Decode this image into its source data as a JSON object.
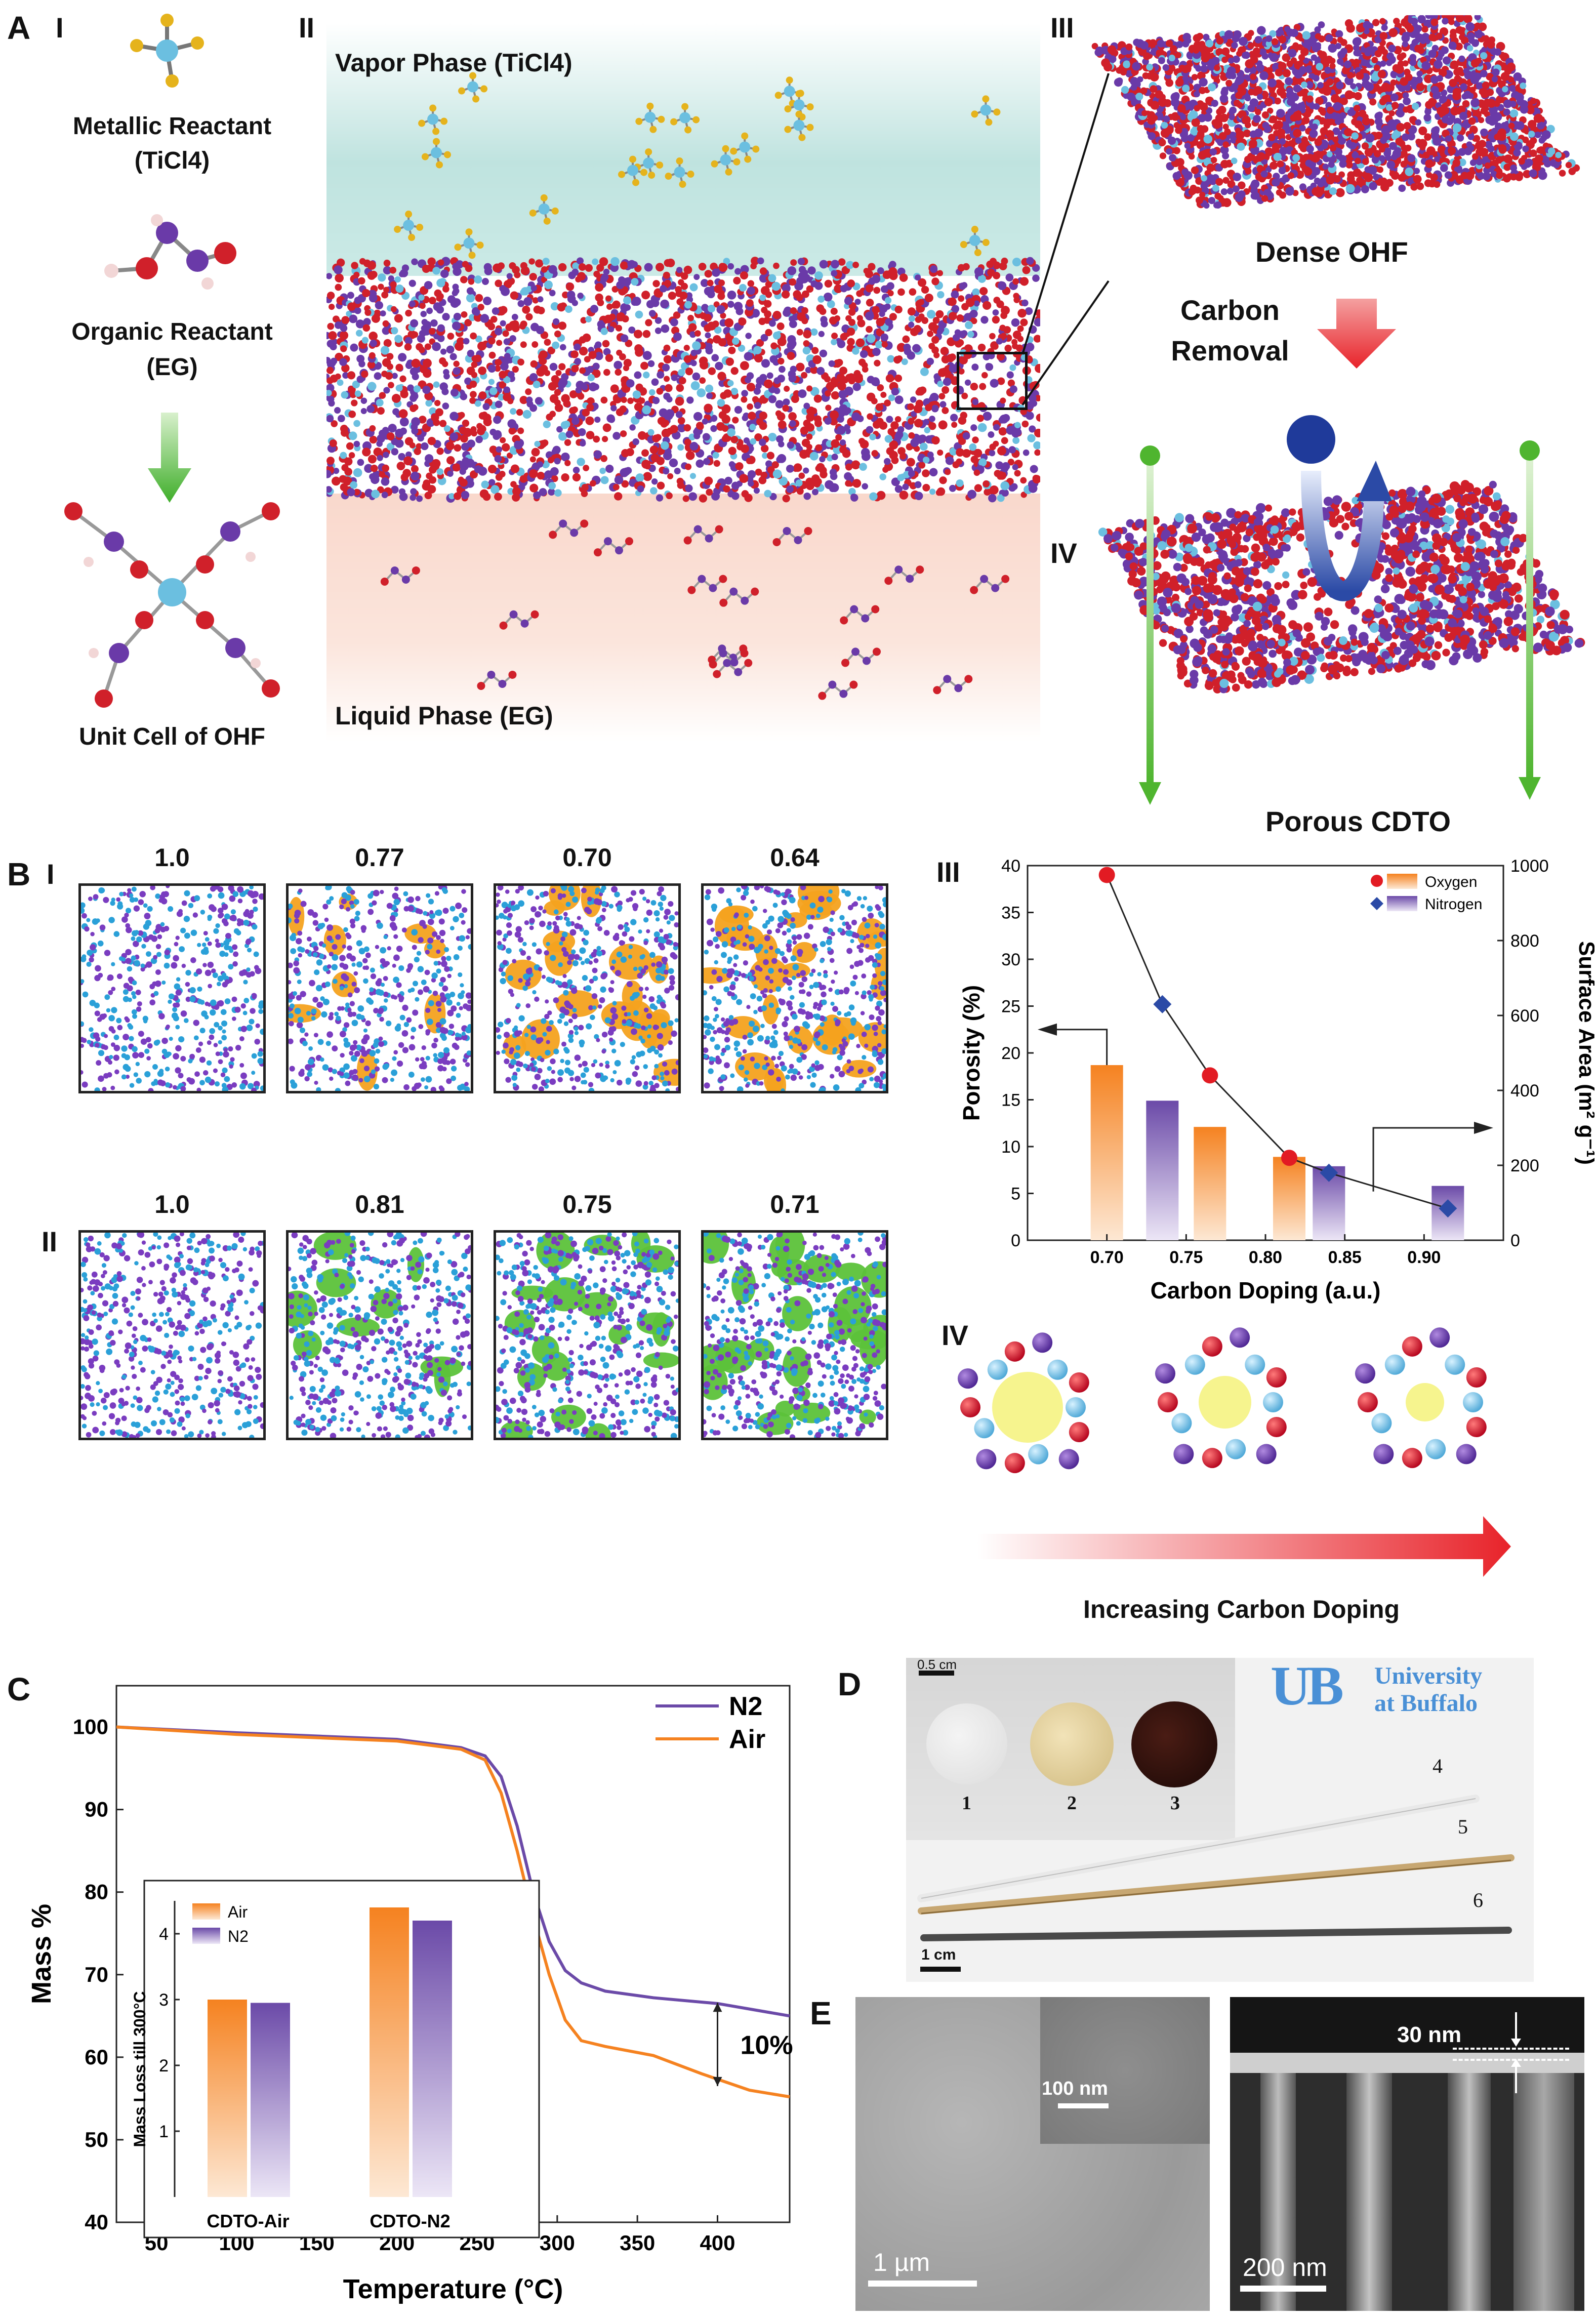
{
  "panel_A": {
    "letter": "A",
    "I": {
      "roman": "I",
      "metallic_label_1": "Metallic Reactant",
      "metallic_label_2": "(TiCl4)",
      "organic_label_1": "Organic Reactant",
      "organic_label_2": "(EG)",
      "unit_cell_label": "Unit Cell of OHF"
    },
    "II": {
      "roman": "II",
      "vapor_label": "Vapor Phase (TiCl4)",
      "liquid_label": "Liquid Phase (EG)"
    },
    "III": {
      "roman": "III",
      "dense_label": "Dense OHF",
      "removal_label_1": "Carbon",
      "removal_label_2": "Removal"
    },
    "IV": {
      "roman": "IV",
      "porous_label": "Porous CDTO"
    },
    "colors": {
      "vapor": "#bfe3df",
      "liquid": "#f9d8cc",
      "oxygen": "#d0202a",
      "carbon": "#6a3aa8",
      "titanium": "#6bbfe0",
      "arrow_red": "#e8232a",
      "arrow_green": "#5cbf3a"
    }
  },
  "panel_B": {
    "letter": "B",
    "I": {
      "roman": "I",
      "values": [
        "1.0",
        "0.77",
        "0.70",
        "0.64"
      ],
      "pore_color": "#f4a21f"
    },
    "II": {
      "roman": "II",
      "values": [
        "1.0",
        "0.81",
        "0.75",
        "0.71"
      ],
      "pore_color": "#5cc23a"
    },
    "III": {
      "roman": "III"
    },
    "IV": {
      "roman": "IV",
      "arrow_label": "Increasing Carbon Doping"
    }
  },
  "panel_C": {
    "letter": "C"
  },
  "panel_D": {
    "letter": "D",
    "scale_top": "0.5 cm",
    "scale_bottom": "1 cm",
    "disc_labels": [
      "1",
      "2",
      "3"
    ],
    "rod_labels": [
      "4",
      "5",
      "6"
    ],
    "logo_line1": "University",
    "logo_line2": "at Buffalo",
    "logo_mark": "UB"
  },
  "panel_E": {
    "letter": "E",
    "left_scale": "1 µm",
    "inset_scale": "100 nm",
    "right_scale": "200 nm",
    "thickness_label": "30 nm"
  },
  "chart_data": [
    {
      "type": "bar",
      "id": "B-III",
      "xlabel": "Carbon Doping (a.u.)",
      "ylabel": "Porosity (%)",
      "y2label": "Surface Area (m² g⁻¹)",
      "xlim": [
        0.65,
        0.95
      ],
      "ylim": [
        0,
        40
      ],
      "y2lim": [
        0,
        1000
      ],
      "xticks": [
        "0.70",
        "0.75",
        "0.80",
        "0.85",
        "0.90"
      ],
      "yticks": [
        "0",
        "5",
        "10",
        "15",
        "20",
        "25",
        "30",
        "35",
        "40"
      ],
      "y2ticks": [
        "0",
        "200",
        "400",
        "600",
        "800",
        "1000"
      ],
      "legend": [
        "Oxygen",
        "Nitrogen"
      ],
      "legend_position": "top-right",
      "bars": [
        {
          "series": "Oxygen",
          "x": 0.7,
          "porosity": 18.7
        },
        {
          "series": "Nitrogen",
          "x": 0.735,
          "porosity": 14.9
        },
        {
          "series": "Oxygen",
          "x": 0.765,
          "porosity": 12.1
        },
        {
          "series": "Oxygen",
          "x": 0.815,
          "porosity": 8.9
        },
        {
          "series": "Nitrogen",
          "x": 0.84,
          "porosity": 7.9
        },
        {
          "series": "Nitrogen",
          "x": 0.915,
          "porosity": 5.8
        }
      ],
      "surface_area_points": [
        {
          "series": "Oxygen",
          "x": 0.7,
          "y": 975
        },
        {
          "series": "Nitrogen",
          "x": 0.735,
          "y": 630
        },
        {
          "series": "Oxygen",
          "x": 0.765,
          "y": 440
        },
        {
          "series": "Oxygen",
          "x": 0.815,
          "y": 220
        },
        {
          "series": "Nitrogen",
          "x": 0.84,
          "y": 180
        },
        {
          "series": "Nitrogen",
          "x": 0.915,
          "y": 85
        }
      ],
      "colors": {
        "Oxygen": "#f58220",
        "Nitrogen": "#6b4aa8",
        "oxygen_marker": "#e21b23",
        "nitrogen_marker": "#2b4aa6"
      }
    },
    {
      "type": "line",
      "id": "C",
      "xlabel": "Temperature (°C)",
      "ylabel": "Mass %",
      "xlim": [
        25,
        445
      ],
      "ylim": [
        40,
        105
      ],
      "xticks": [
        "50",
        "100",
        "150",
        "200",
        "250",
        "300",
        "350",
        "400"
      ],
      "yticks": [
        "40",
        "50",
        "60",
        "70",
        "80",
        "90",
        "100"
      ],
      "legend_position": "top-right",
      "annotation": "10%",
      "series": [
        {
          "name": "N2",
          "color": "#6b4aa8",
          "x": [
            25,
            100,
            200,
            240,
            255,
            265,
            275,
            285,
            295,
            305,
            315,
            330,
            360,
            400,
            445
          ],
          "y": [
            100,
            99.3,
            98.5,
            97.5,
            96.5,
            94,
            88,
            80,
            74,
            70.5,
            69,
            68,
            67.2,
            66.5,
            65
          ]
        },
        {
          "name": "Air",
          "color": "#f58220",
          "x": [
            25,
            100,
            200,
            240,
            255,
            265,
            275,
            285,
            295,
            305,
            315,
            330,
            360,
            390,
            420,
            445
          ],
          "y": [
            100,
            99.1,
            98.3,
            97.3,
            96,
            92,
            85,
            77,
            70,
            64.5,
            62,
            61.3,
            60.2,
            58,
            56,
            55.2
          ]
        }
      ],
      "inset": {
        "type": "bar",
        "ylabel": "Mass Loss till 300°C",
        "ylim": [
          0,
          4.5
        ],
        "yticks": [
          "1",
          "2",
          "3",
          "4"
        ],
        "categories": [
          "CDTO-Air",
          "CDTO-N2"
        ],
        "legend": [
          "Air",
          "N2"
        ],
        "series": [
          {
            "name": "Air",
            "values": [
              3.0,
              4.4
            ]
          },
          {
            "name": "N2",
            "values": [
              2.95,
              4.2
            ]
          }
        ]
      }
    }
  ]
}
